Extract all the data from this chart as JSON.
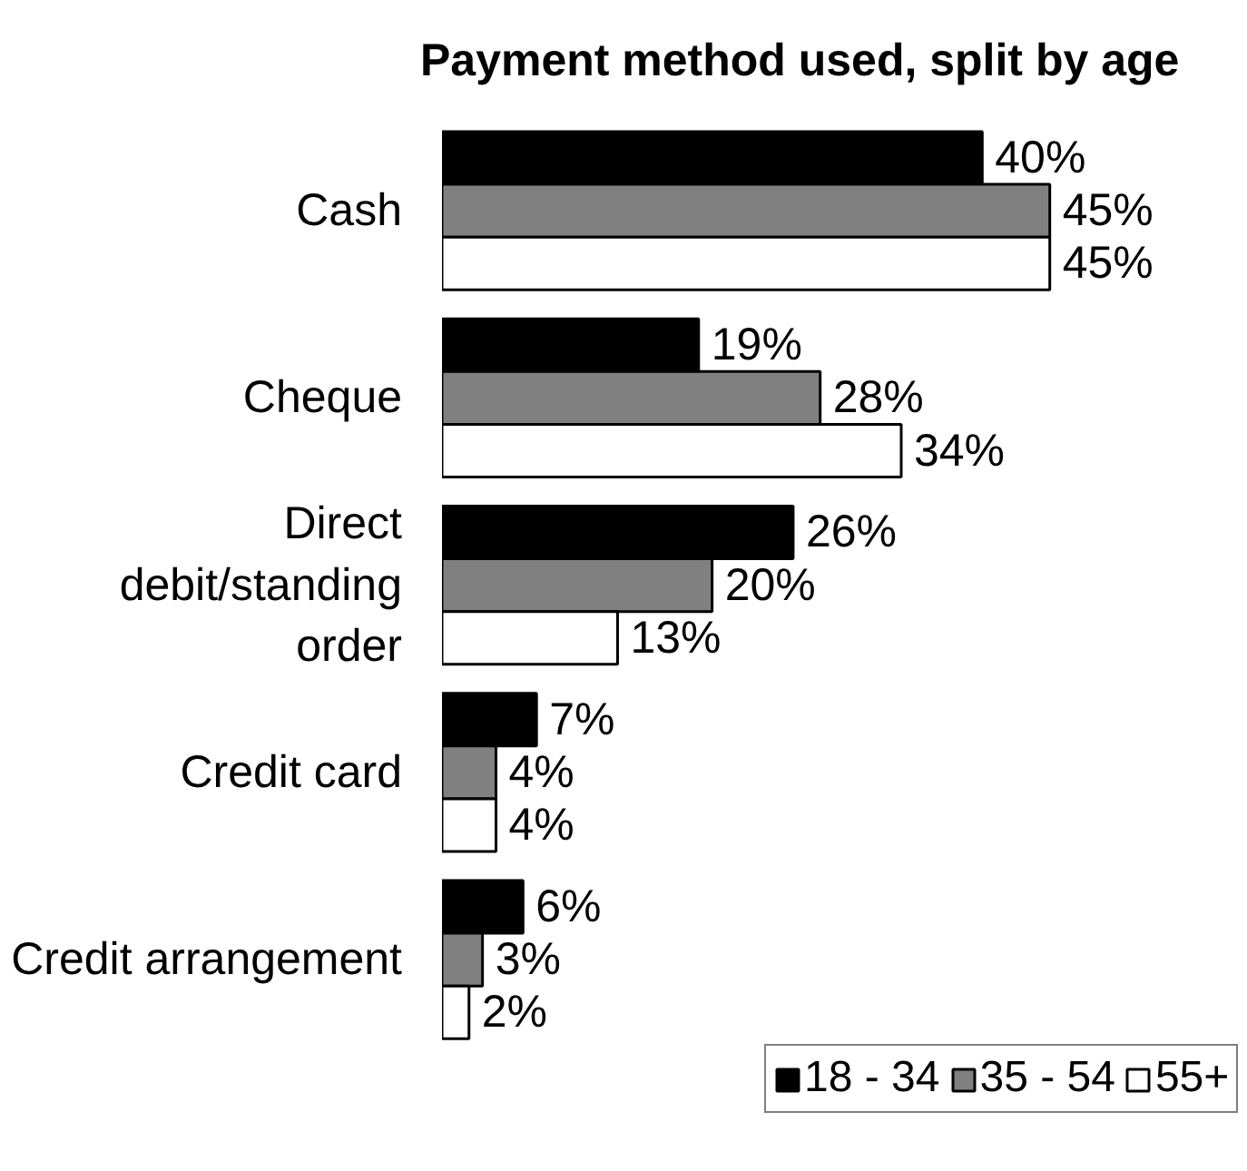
{
  "chart_data": {
    "type": "bar",
    "orientation": "horizontal",
    "title": "Payment method used, split by age",
    "categories": [
      "Cash",
      "Cheque",
      "Direct debit/standing order",
      "Credit card",
      "Credit arrangement"
    ],
    "series": [
      {
        "name": "18 - 34",
        "color": "#000000",
        "values": [
          40,
          19,
          26,
          7,
          6
        ],
        "value_labels": [
          "40%",
          "19%",
          "26%",
          "7%",
          "6%"
        ]
      },
      {
        "name": "35 - 54",
        "color": "#808080",
        "values": [
          45,
          28,
          20,
          4,
          3
        ],
        "value_labels": [
          "45%",
          "28%",
          "20%",
          "4%",
          "3%"
        ]
      },
      {
        "name": "55+",
        "color": "#ffffff",
        "values": [
          45,
          34,
          13,
          4,
          2
        ],
        "value_labels": [
          "45%",
          "34%",
          "13%",
          "4%",
          "2%"
        ]
      }
    ],
    "legend": "bottom right",
    "tick_labels": "y"
  }
}
